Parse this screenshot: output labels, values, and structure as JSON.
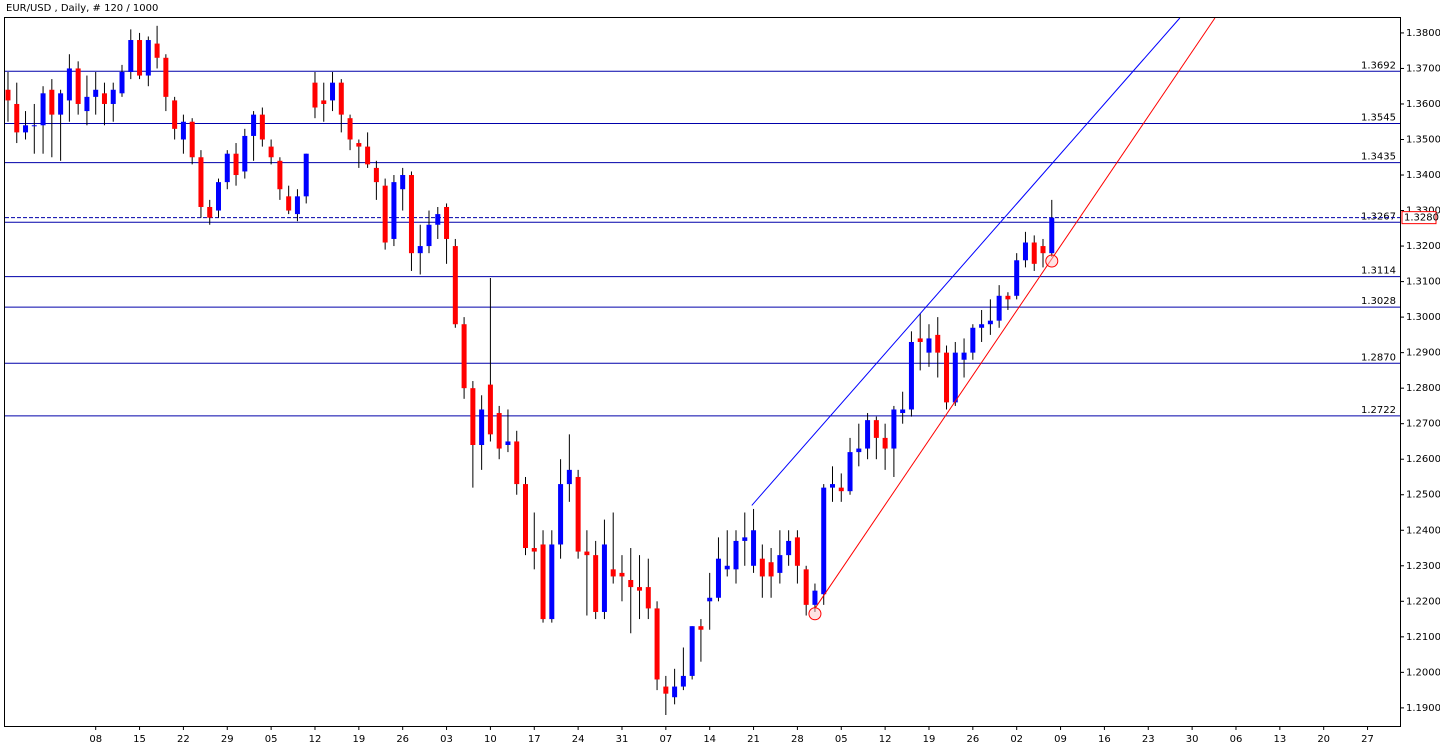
{
  "chart_data": {
    "type": "candlestick",
    "title": "EUR/USD , Daily, # 120 / 1000",
    "up_color": "#0000ff",
    "down_color": "#ff0000",
    "level_color": "#0000aa",
    "open": [
      1.364,
      1.36,
      1.352,
      1.354,
      1.354,
      1.364,
      1.357,
      1.361,
      1.37,
      1.358,
      1.362,
      1.363,
      1.36,
      1.363,
      1.369,
      1.378,
      1.368,
      1.377,
      1.373,
      1.361,
      1.35,
      1.355,
      1.345,
      1.331,
      1.33,
      1.338,
      1.346,
      1.341,
      1.351,
      1.357,
      1.348,
      1.344,
      1.334,
      1.329,
      1.334,
      1.366,
      1.361,
      1.361,
      1.366,
      1.356,
      1.349,
      1.348,
      1.342,
      1.337,
      1.322,
      1.336,
      1.34,
      1.318,
      1.32,
      1.326,
      1.331,
      1.32,
      1.298,
      1.28,
      1.264,
      1.281,
      1.273,
      1.264,
      1.265,
      1.253,
      1.235,
      1.236,
      1.215,
      1.236,
      1.253,
      1.255,
      1.234,
      1.233,
      1.217,
      1.229,
      1.228,
      1.226,
      1.224,
      1.224,
      1.218,
      1.196,
      1.193,
      1.196,
      1.199,
      1.213,
      1.22,
      1.221,
      1.229,
      1.229,
      1.237,
      1.23,
      1.232,
      1.231,
      1.228,
      1.233,
      1.238,
      1.229,
      1.219,
      1.222,
      1.252,
      1.252,
      1.251,
      1.262,
      1.263,
      1.271,
      1.266,
      1.263,
      1.273,
      1.274,
      1.294,
      1.29,
      1.295,
      1.29,
      1.276,
      1.288,
      1.29,
      1.297,
      1.298,
      1.299,
      1.306,
      1.306,
      1.316,
      1.321,
      1.32,
      1.318
    ],
    "high": [
      1.369,
      1.366,
      1.358,
      1.36,
      1.365,
      1.367,
      1.364,
      1.374,
      1.372,
      1.368,
      1.369,
      1.366,
      1.366,
      1.371,
      1.381,
      1.38,
      1.379,
      1.382,
      1.374,
      1.362,
      1.357,
      1.356,
      1.347,
      1.333,
      1.339,
      1.347,
      1.349,
      1.353,
      1.358,
      1.359,
      1.35,
      1.345,
      1.337,
      1.336,
      1.346,
      1.369,
      1.366,
      1.369,
      1.367,
      1.357,
      1.35,
      1.352,
      1.344,
      1.339,
      1.34,
      1.342,
      1.341,
      1.326,
      1.33,
      1.331,
      1.332,
      1.322,
      1.3,
      1.282,
      1.278,
      1.311,
      1.275,
      1.274,
      1.268,
      1.255,
      1.245,
      1.24,
      1.24,
      1.26,
      1.267,
      1.257,
      1.24,
      1.237,
      1.243,
      1.245,
      1.233,
      1.235,
      1.233,
      1.232,
      1.22,
      1.199,
      1.201,
      1.207,
      1.213,
      1.215,
      1.228,
      1.238,
      1.24,
      1.24,
      1.245,
      1.246,
      1.236,
      1.235,
      1.24,
      1.24,
      1.24,
      1.23,
      1.225,
      1.253,
      1.258,
      1.256,
      1.266,
      1.27,
      1.273,
      1.272,
      1.27,
      1.275,
      1.279,
      1.296,
      1.301,
      1.298,
      1.3,
      1.292,
      1.293,
      1.294,
      1.298,
      1.302,
      1.305,
      1.309,
      1.307,
      1.318,
      1.324,
      1.323,
      1.322,
      1.333
    ],
    "low": [
      1.355,
      1.349,
      1.35,
      1.346,
      1.346,
      1.345,
      1.344,
      1.355,
      1.357,
      1.354,
      1.357,
      1.354,
      1.355,
      1.362,
      1.367,
      1.367,
      1.365,
      1.37,
      1.358,
      1.35,
      1.346,
      1.343,
      1.328,
      1.326,
      1.328,
      1.336,
      1.337,
      1.339,
      1.344,
      1.348,
      1.343,
      1.333,
      1.329,
      1.327,
      1.332,
      1.356,
      1.355,
      1.358,
      1.352,
      1.347,
      1.342,
      1.342,
      1.333,
      1.319,
      1.32,
      1.33,
      1.313,
      1.312,
      1.318,
      1.322,
      1.315,
      1.297,
      1.277,
      1.252,
      1.257,
      1.265,
      1.26,
      1.262,
      1.25,
      1.233,
      1.229,
      1.214,
      1.214,
      1.232,
      1.248,
      1.232,
      1.216,
      1.215,
      1.215,
      1.225,
      1.22,
      1.211,
      1.215,
      1.215,
      1.195,
      1.188,
      1.191,
      1.195,
      1.198,
      1.203,
      1.212,
      1.22,
      1.227,
      1.225,
      1.23,
      1.228,
      1.221,
      1.221,
      1.225,
      1.23,
      1.225,
      1.216,
      1.217,
      1.219,
      1.248,
      1.248,
      1.25,
      1.258,
      1.26,
      1.26,
      1.257,
      1.255,
      1.27,
      1.272,
      1.285,
      1.286,
      1.283,
      1.274,
      1.275,
      1.283,
      1.288,
      1.293,
      1.295,
      1.297,
      1.302,
      1.305,
      1.314,
      1.313,
      1.314,
      1.317
    ],
    "close": [
      1.361,
      1.352,
      1.354,
      1.354,
      1.363,
      1.357,
      1.363,
      1.37,
      1.36,
      1.362,
      1.364,
      1.36,
      1.364,
      1.369,
      1.378,
      1.368,
      1.378,
      1.373,
      1.362,
      1.353,
      1.355,
      1.345,
      1.331,
      1.328,
      1.338,
      1.346,
      1.34,
      1.351,
      1.357,
      1.35,
      1.345,
      1.336,
      1.33,
      1.334,
      1.346,
      1.359,
      1.36,
      1.366,
      1.357,
      1.35,
      1.348,
      1.343,
      1.338,
      1.321,
      1.338,
      1.34,
      1.318,
      1.32,
      1.326,
      1.329,
      1.322,
      1.298,
      1.28,
      1.264,
      1.274,
      1.267,
      1.263,
      1.265,
      1.253,
      1.235,
      1.234,
      1.215,
      1.236,
      1.253,
      1.257,
      1.234,
      1.233,
      1.217,
      1.236,
      1.227,
      1.227,
      1.224,
      1.223,
      1.218,
      1.198,
      1.194,
      1.196,
      1.199,
      1.213,
      1.212,
      1.221,
      1.232,
      1.23,
      1.237,
      1.238,
      1.24,
      1.227,
      1.227,
      1.233,
      1.237,
      1.23,
      1.219,
      1.223,
      1.252,
      1.253,
      1.251,
      1.262,
      1.263,
      1.271,
      1.266,
      1.263,
      1.274,
      1.274,
      1.293,
      1.293,
      1.294,
      1.29,
      1.276,
      1.29,
      1.29,
      1.297,
      1.298,
      1.299,
      1.306,
      1.305,
      1.316,
      1.321,
      1.315,
      1.318,
      1.328
    ],
    "xlim": [
      -0.34,
      158.7
    ],
    "ylim": [
      1.1849,
      1.3842
    ],
    "xticks": [
      {
        "value": 10,
        "label": "08"
      },
      {
        "value": 15,
        "label": "15"
      },
      {
        "value": 20,
        "label": "22"
      },
      {
        "value": 25,
        "label": "29"
      },
      {
        "value": 30,
        "label": "05"
      },
      {
        "value": 35,
        "label": "12"
      },
      {
        "value": 40,
        "label": "19"
      },
      {
        "value": 45,
        "label": "26"
      },
      {
        "value": 50,
        "label": "03"
      },
      {
        "value": 55,
        "label": "10"
      },
      {
        "value": 60,
        "label": "17"
      },
      {
        "value": 65,
        "label": "24"
      },
      {
        "value": 70,
        "label": "31"
      },
      {
        "value": 75,
        "label": "07"
      },
      {
        "value": 80,
        "label": "14"
      },
      {
        "value": 85,
        "label": "21"
      },
      {
        "value": 90,
        "label": "28"
      },
      {
        "value": 95,
        "label": "05"
      },
      {
        "value": 100,
        "label": "12"
      },
      {
        "value": 105,
        "label": "19"
      },
      {
        "value": 110,
        "label": "26"
      },
      {
        "value": 115,
        "label": "02"
      },
      {
        "value": 120,
        "label": "09"
      },
      {
        "value": 125,
        "label": "16"
      },
      {
        "value": 130,
        "label": "23"
      },
      {
        "value": 135,
        "label": "30"
      },
      {
        "value": 140,
        "label": "06"
      },
      {
        "value": 145,
        "label": "13"
      },
      {
        "value": 150,
        "label": "20"
      },
      {
        "value": 155,
        "label": "27"
      }
    ],
    "yticks": [
      {
        "value": 1.19,
        "label": "1.1900"
      },
      {
        "value": 1.2,
        "label": "1.2000"
      },
      {
        "value": 1.21,
        "label": "1.2100"
      },
      {
        "value": 1.22,
        "label": "1.2200"
      },
      {
        "value": 1.23,
        "label": "1.2300"
      },
      {
        "value": 1.24,
        "label": "1.2400"
      },
      {
        "value": 1.25,
        "label": "1.2500"
      },
      {
        "value": 1.26,
        "label": "1.2600"
      },
      {
        "value": 1.27,
        "label": "1.2700"
      },
      {
        "value": 1.28,
        "label": "1.2800"
      },
      {
        "value": 1.29,
        "label": "1.2900"
      },
      {
        "value": 1.3,
        "label": "1.3000"
      },
      {
        "value": 1.31,
        "label": "1.3100"
      },
      {
        "value": 1.32,
        "label": "1.3200"
      },
      {
        "value": 1.33,
        "label": "1.3300"
      },
      {
        "value": 1.34,
        "label": "1.3400"
      },
      {
        "value": 1.35,
        "label": "1.3500"
      },
      {
        "value": 1.36,
        "label": "1.3600"
      },
      {
        "value": 1.37,
        "label": "1.3700"
      },
      {
        "value": 1.38,
        "label": "1.3800"
      }
    ],
    "levels": [
      {
        "value": 1.3692,
        "label": "1.3692"
      },
      {
        "value": 1.3545,
        "label": "1.3545"
      },
      {
        "value": 1.3435,
        "label": "1.3435"
      },
      {
        "value": 1.3267,
        "label": "1.3267"
      },
      {
        "value": 1.3114,
        "label": "1.3114"
      },
      {
        "value": 1.3028,
        "label": "1.3028"
      },
      {
        "value": 1.287,
        "label": "1.2870"
      },
      {
        "value": 1.2722,
        "label": "1.2722"
      }
    ],
    "current_price": {
      "value": 1.328,
      "label": "1.3280"
    },
    "trendlines": [
      {
        "color": "#0000ff",
        "x": [
          84.8,
          133.6
        ],
        "y": [
          1.247,
          1.3842
        ]
      },
      {
        "color": "#ff0000",
        "x": [
          92,
          137.6
        ],
        "y": [
          1.218,
          1.3842
        ]
      }
    ],
    "markers": [
      {
        "x": 92,
        "y": 1.2165
      },
      {
        "x": 119,
        "y": 1.3158
      }
    ]
  }
}
